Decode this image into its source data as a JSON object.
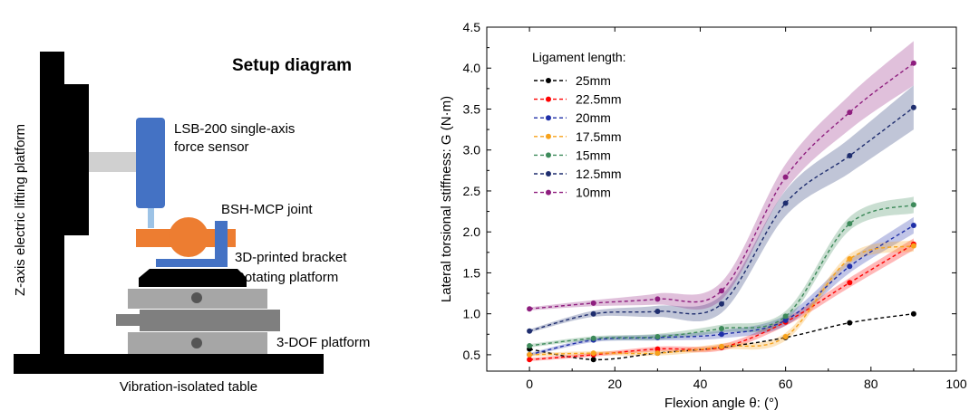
{
  "diagram": {
    "title": "Setup diagram",
    "lifting_platform_label": "Z-axis electric lifting platform",
    "sensor_label_line1": "LSB-200 single-axis",
    "sensor_label_line2": "force sensor",
    "joint_label": "BSH-MCP joint",
    "bracket_label": "3D-printed bracket",
    "rotating_label": "Rotating platform",
    "dof_label": "3-DOF platform",
    "table_label": "Vibration-isolated table",
    "colors": {
      "frame": "#000000",
      "sensor": "#4472c4",
      "joint": "#ed7d31",
      "bracket": "#4472c4",
      "platform_light": "#a6a6a6",
      "platform_dark": "#7f7f7f",
      "arm": "#d0d0d0"
    }
  },
  "chart_data": {
    "type": "line",
    "xlabel": "Flexion angle θ: (°)",
    "ylabel": "Lateral torsional stiffness: G (N·m)",
    "xlim": [
      -10,
      100
    ],
    "ylim": [
      0.3,
      4.5
    ],
    "xticks": [
      "0",
      "20",
      "40",
      "60",
      "80",
      "100"
    ],
    "yticks": [
      "0.5",
      "1.0",
      "1.5",
      "2.0",
      "2.5",
      "3.0",
      "3.5",
      "4.0",
      "4.5"
    ],
    "legend_title": "Ligament length:",
    "legend_position": "top-left",
    "grid": false,
    "x": [
      0,
      15,
      30,
      45,
      60,
      75,
      90
    ],
    "series": [
      {
        "name": "25mm",
        "color": "#000000",
        "values": [
          0.57,
          0.44,
          0.52,
          0.59,
          0.71,
          0.89,
          1.0
        ],
        "band": 0.0
      },
      {
        "name": "22.5mm",
        "color": "#ff0000",
        "values": [
          0.44,
          0.5,
          0.57,
          0.59,
          0.9,
          1.38,
          1.85
        ],
        "band": 0.05
      },
      {
        "name": "20mm",
        "color": "#1f2fa8",
        "values": [
          0.5,
          0.68,
          0.71,
          0.75,
          0.92,
          1.58,
          2.08
        ],
        "band": 0.08
      },
      {
        "name": "17.5mm",
        "color": "#f7a21b",
        "values": [
          0.5,
          0.52,
          0.52,
          0.6,
          0.72,
          1.67,
          1.83
        ],
        "band": 0.05
      },
      {
        "name": "15mm",
        "color": "#3d8a5a",
        "values": [
          0.61,
          0.7,
          0.72,
          0.82,
          0.97,
          2.1,
          2.33
        ],
        "band": 0.08
      },
      {
        "name": "12.5mm",
        "color": "#1e2d6e",
        "values": [
          0.79,
          1.0,
          1.03,
          1.12,
          2.35,
          2.93,
          3.52
        ],
        "band": 0.25
      },
      {
        "name": "10mm",
        "color": "#8e1d7e",
        "values": [
          1.06,
          1.13,
          1.18,
          1.28,
          2.67,
          3.46,
          4.06
        ],
        "band": 0.25
      }
    ]
  }
}
